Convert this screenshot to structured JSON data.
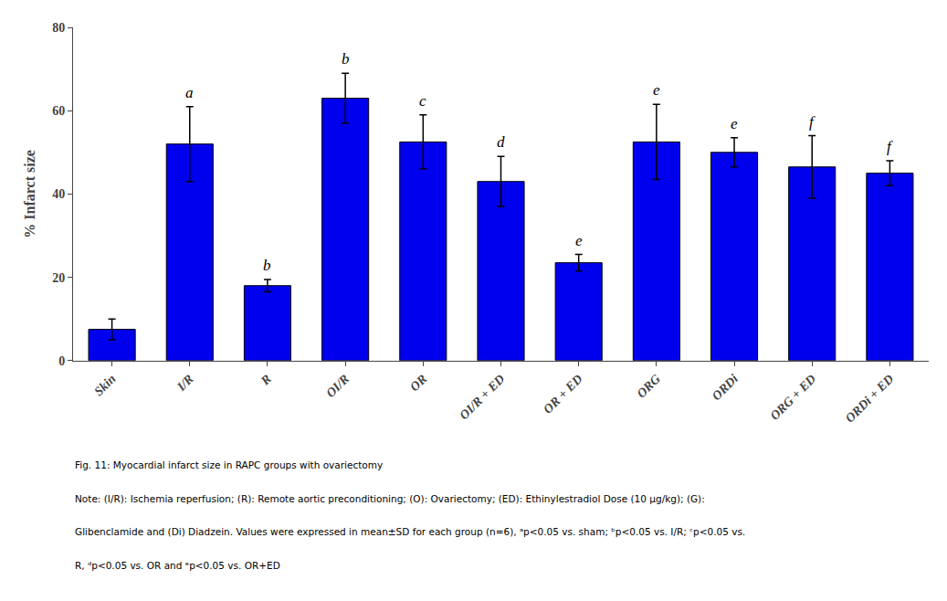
{
  "chart_data": {
    "type": "bar",
    "categories": [
      "Skin",
      "I/R",
      "R",
      "OI/R",
      "OR",
      "OI/R + ED",
      "OR + ED",
      "ORG",
      "ORDi",
      "ORG + ED",
      "ORDi + ED"
    ],
    "values": [
      7.5,
      52.0,
      18.0,
      63.0,
      52.5,
      43.0,
      23.5,
      52.5,
      50.0,
      46.5,
      45.0
    ],
    "errors": [
      2.5,
      9.0,
      1.5,
      6.0,
      6.5,
      6.0,
      2.0,
      9.0,
      3.5,
      7.5,
      3.0
    ],
    "color": "#0000EE",
    "ylabel": "% Infarct size",
    "ylim": [
      0,
      80
    ],
    "yticks": [
      0,
      20,
      40,
      60,
      80
    ],
    "grid": false,
    "annotations": [
      {
        "category": "I/R",
        "text": "a"
      },
      {
        "category": "R",
        "text": "b"
      },
      {
        "category": "OI/R",
        "text": "b"
      },
      {
        "category": "OR",
        "text": "c"
      },
      {
        "category": "OI/R + ED",
        "text": "d"
      },
      {
        "category": "OR + ED",
        "text": "e"
      },
      {
        "category": "ORG",
        "text": "e"
      },
      {
        "category": "ORDi",
        "text": "e"
      },
      {
        "category": "ORG + ED",
        "text": "f"
      },
      {
        "category": "ORDi + ED",
        "text": "f"
      }
    ],
    "caption": "Fig. 11: Myocardial infarct size in RAPC groups with ovariectomy",
    "notes": [
      "Note: (I/R): Ischemia reperfusion; (R): Remote aortic preconditioning; (O): Ovariectomy; (ED): Ethinylestradiol Dose (10 μg/kg); (G):",
      "Glibenclamide and (Di) Diadzein. Values were expressed in mean±SD for each group (n=6), ᵃp<0.05 vs. sham; ᵇp<0.05 vs. I/R; ᶜp<0.05 vs.",
      "R, ᵈp<0.05 vs. OR and ᵉp<0.05 vs. OR+ED"
    ]
  }
}
